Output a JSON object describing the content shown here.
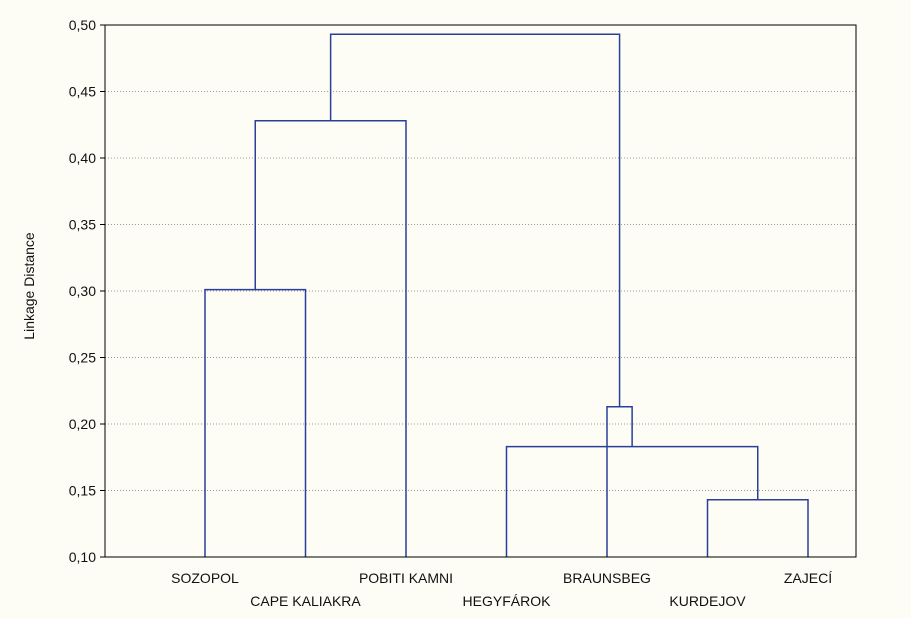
{
  "chart_data": {
    "type": "dendrogram",
    "title": "",
    "xlabel": "",
    "ylabel": "Linkage Distance",
    "ylim": [
      0.1,
      0.5
    ],
    "yticks": [
      "0,10",
      "0,15",
      "0,20",
      "0,25",
      "0,30",
      "0,35",
      "0,40",
      "0,45",
      "0,50"
    ],
    "ytick_values": [
      0.1,
      0.15,
      0.2,
      0.25,
      0.3,
      0.35,
      0.4,
      0.45,
      0.5
    ],
    "grid": "horizontal dotted",
    "leaves": [
      "SOZOPOL",
      "CAPE KALIAKRA",
      "POBITI KAMNI",
      "HEGYFÁROK",
      "BRAUNSBEG",
      "KURDEJOV",
      "ZAJECÍ"
    ],
    "merges": [
      {
        "left": "KURDEJOV",
        "right": "ZAJECÍ",
        "height": 0.143
      },
      {
        "left": "HEGYFÁROK",
        "right": "KURDEJOV + ZAJECÍ",
        "height": 0.183
      },
      {
        "left": "BRAUNSBEG",
        "right": "HEGYFÁROK + KURDEJOV + ZAJECÍ",
        "height": 0.213
      },
      {
        "left": "SOZOPOL",
        "right": "CAPE KALIAKRA",
        "height": 0.301
      },
      {
        "left": "SOZOPOL + CAPE KALIAKRA",
        "right": "POBITI KAMNI",
        "height": 0.428
      },
      {
        "left": "SOZOPOL + CAPE KALIAKRA + POBITI KAMNI",
        "right": "BRAUNSBEG + HEGYFÁROK + KURDEJOV + ZAJECÍ",
        "height": 0.493
      }
    ],
    "colors": {
      "link": "#2a3f9a",
      "axis": "#000000",
      "grid": "#9a9a9a",
      "background": "#fdfdf6"
    }
  }
}
